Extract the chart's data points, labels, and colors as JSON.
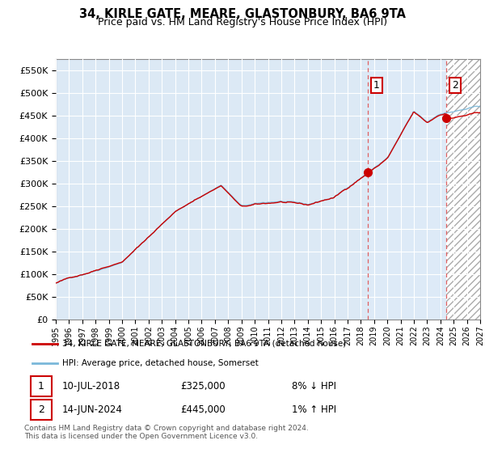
{
  "title": "34, KIRLE GATE, MEARE, GLASTONBURY, BA6 9TA",
  "subtitle": "Price paid vs. HM Land Registry's House Price Index (HPI)",
  "legend_line1": "34, KIRLE GATE, MEARE, GLASTONBURY, BA6 9TA (detached house)",
  "legend_line2": "HPI: Average price, detached house, Somerset",
  "annotation1_date": "10-JUL-2018",
  "annotation1_price": "£325,000",
  "annotation1_hpi": "8% ↓ HPI",
  "annotation2_date": "14-JUN-2024",
  "annotation2_price": "£445,000",
  "annotation2_hpi": "1% ↑ HPI",
  "footer": "Contains HM Land Registry data © Crown copyright and database right 2024.\nThis data is licensed under the Open Government Licence v3.0.",
  "sale1_year": 2018.54,
  "sale1_value": 325000,
  "sale2_year": 2024.45,
  "sale2_value": 445000,
  "hpi_color": "#7ab8d9",
  "price_color": "#cc0000",
  "vline_color": "#e06060",
  "background_color": "#dce9f5",
  "span_color": "#ddeaf7",
  "ylim": [
    0,
    575000
  ],
  "xlim_start": 1995,
  "xlim_end": 2027
}
